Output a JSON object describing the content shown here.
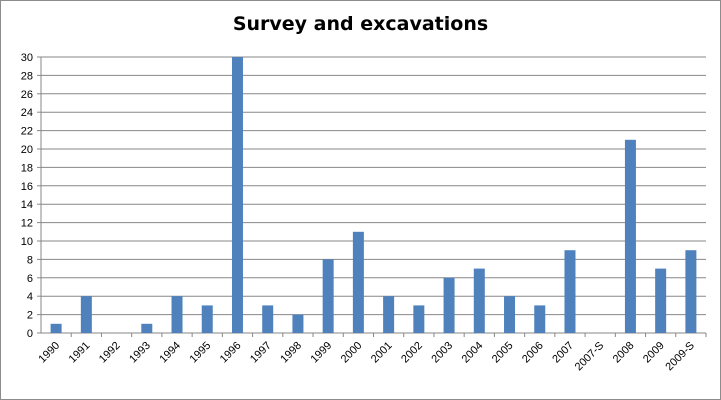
{
  "chart_data": {
    "type": "bar",
    "title": "Survey and excavations",
    "xlabel": "",
    "ylabel": "",
    "categories": [
      "1990",
      "1991",
      "1992",
      "1993",
      "1994",
      "1995",
      "1996",
      "1997",
      "1998",
      "1999",
      "2000",
      "2001",
      "2002",
      "2003",
      "2004",
      "2005",
      "2006",
      "2007",
      "2007-S",
      "2008",
      "2009",
      "2009-S"
    ],
    "values": [
      1,
      4,
      0,
      1,
      4,
      3,
      30,
      3,
      2,
      8,
      11,
      4,
      3,
      6,
      7,
      4,
      3,
      9,
      0,
      21,
      7,
      9
    ],
    "ylim": [
      0,
      30
    ],
    "yticks": [
      0,
      2,
      4,
      6,
      8,
      10,
      12,
      14,
      16,
      18,
      20,
      22,
      24,
      26,
      28,
      30
    ],
    "grid": true,
    "legend": "none",
    "colors": {
      "bar": "#4f81bd",
      "grid": "#878787",
      "axis": "#878787"
    }
  }
}
